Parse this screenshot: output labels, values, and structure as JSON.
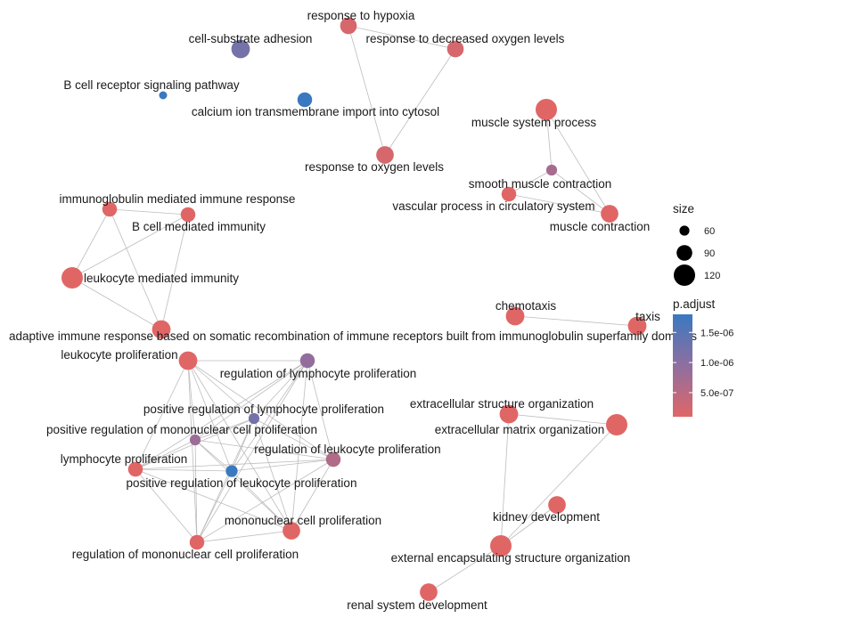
{
  "colors": {
    "low": "#e06666",
    "mid": "#8e6fa0",
    "high": "#3a78c0",
    "edge": "#bdbdbd"
  },
  "nodes": [
    {
      "id": "hypoxia",
      "label": "response to hypoxia",
      "size": 95,
      "p": 2e-07
    },
    {
      "id": "dec_oxygen",
      "label": "response to decreased oxygen levels",
      "size": 95,
      "p": 2e-07
    },
    {
      "id": "oxygen",
      "label": "response to oxygen levels",
      "size": 100,
      "p": 2e-07
    },
    {
      "id": "cell_substrate",
      "label": "cell-substrate adhesion",
      "size": 105,
      "p": 1.2e-06
    },
    {
      "id": "bcr",
      "label": "B cell receptor signaling pathway",
      "size": 50,
      "p": 1.8e-06
    },
    {
      "id": "calcium",
      "label": "calcium ion transmembrane import into cytosol",
      "size": 85,
      "p": 1.8e-06
    },
    {
      "id": "muscle_sys",
      "label": "muscle system process",
      "size": 120,
      "p": 1e-07
    },
    {
      "id": "smooth_muscle",
      "label": "smooth muscle contraction",
      "size": 65,
      "p": 7e-07
    },
    {
      "id": "vascular",
      "label": "vascular process in circulatory system",
      "size": 85,
      "p": 1e-07
    },
    {
      "id": "muscle_contr",
      "label": "muscle contraction",
      "size": 100,
      "p": 1e-07
    },
    {
      "id": "ig_immune",
      "label": "immunoglobulin mediated immune response",
      "size": 85,
      "p": 1e-07
    },
    {
      "id": "bcell_imm",
      "label": "B cell mediated immunity",
      "size": 85,
      "p": 1e-07
    },
    {
      "id": "leuko_imm",
      "label": "leukocyte mediated immunity",
      "size": 120,
      "p": 1e-07
    },
    {
      "id": "adaptive",
      "label": "adaptive immune response based on somatic recombination of immune receptors built from immunoglobulin superfamily domains",
      "size": 105,
      "p": 1e-07
    },
    {
      "id": "chemotaxis",
      "label": "chemotaxis",
      "size": 105,
      "p": 1e-07
    },
    {
      "id": "taxis",
      "label": "taxis",
      "size": 105,
      "p": 1e-07
    },
    {
      "id": "leuko_prolif",
      "label": "leukocyte proliferation",
      "size": 105,
      "p": 1e-07
    },
    {
      "id": "reg_lymph",
      "label": "regulation of lymphocyte proliferation",
      "size": 85,
      "p": 9e-07
    },
    {
      "id": "pos_reg_lymph",
      "label": "positive regulation of lymphocyte proliferation",
      "size": 65,
      "p": 1.2e-06
    },
    {
      "id": "pos_reg_mono",
      "label": "positive regulation of mononuclear cell proliferation",
      "size": 65,
      "p": 8e-07
    },
    {
      "id": "reg_leuko",
      "label": "regulation of leukocyte proliferation",
      "size": 85,
      "p": 6e-07
    },
    {
      "id": "lymph_prolif",
      "label": "lymphocyte proliferation",
      "size": 85,
      "p": 1e-07
    },
    {
      "id": "pos_reg_leuko",
      "label": "positive regulation of leukocyte proliferation",
      "size": 70,
      "p": 1.8e-06
    },
    {
      "id": "mono_prolif",
      "label": "mononuclear cell proliferation",
      "size": 100,
      "p": 1e-07
    },
    {
      "id": "reg_mono",
      "label": "regulation of mononuclear cell proliferation",
      "size": 85,
      "p": 1e-07
    },
    {
      "id": "ecm_struct",
      "label": "extracellular structure organization",
      "size": 105,
      "p": 1e-07
    },
    {
      "id": "ecm_matrix",
      "label": "extracellular matrix organization",
      "size": 120,
      "p": 1e-07
    },
    {
      "id": "kidney",
      "label": "kidney development",
      "size": 100,
      "p": 1e-07
    },
    {
      "id": "ext_encaps",
      "label": "external encapsulating structure organization",
      "size": 120,
      "p": 1e-07
    },
    {
      "id": "renal",
      "label": "renal system development",
      "size": 100,
      "p": 1e-07
    }
  ],
  "edges": [
    [
      "hypoxia",
      "dec_oxygen"
    ],
    [
      "hypoxia",
      "oxygen"
    ],
    [
      "dec_oxygen",
      "oxygen"
    ],
    [
      "muscle_sys",
      "smooth_muscle"
    ],
    [
      "muscle_sys",
      "muscle_contr"
    ],
    [
      "smooth_muscle",
      "vascular"
    ],
    [
      "smooth_muscle",
      "muscle_contr"
    ],
    [
      "vascular",
      "muscle_contr"
    ],
    [
      "ig_immune",
      "bcell_imm"
    ],
    [
      "ig_immune",
      "leuko_imm"
    ],
    [
      "ig_immune",
      "adaptive"
    ],
    [
      "bcell_imm",
      "leuko_imm"
    ],
    [
      "bcell_imm",
      "adaptive"
    ],
    [
      "leuko_imm",
      "adaptive"
    ],
    [
      "chemotaxis",
      "taxis"
    ],
    [
      "ecm_struct",
      "ecm_matrix"
    ],
    [
      "ecm_struct",
      "ext_encaps"
    ],
    [
      "ecm_matrix",
      "ext_encaps"
    ],
    [
      "ext_encaps",
      "kidney"
    ],
    [
      "ext_encaps",
      "renal"
    ],
    [
      "leuko_prolif",
      "reg_lymph"
    ],
    [
      "leuko_prolif",
      "pos_reg_lymph"
    ],
    [
      "leuko_prolif",
      "pos_reg_mono"
    ],
    [
      "leuko_prolif",
      "reg_leuko"
    ],
    [
      "leuko_prolif",
      "lymph_prolif"
    ],
    [
      "leuko_prolif",
      "pos_reg_leuko"
    ],
    [
      "leuko_prolif",
      "mono_prolif"
    ],
    [
      "leuko_prolif",
      "reg_mono"
    ],
    [
      "reg_lymph",
      "pos_reg_lymph"
    ],
    [
      "reg_lymph",
      "pos_reg_mono"
    ],
    [
      "reg_lymph",
      "reg_leuko"
    ],
    [
      "reg_lymph",
      "lymph_prolif"
    ],
    [
      "reg_lymph",
      "pos_reg_leuko"
    ],
    [
      "reg_lymph",
      "mono_prolif"
    ],
    [
      "reg_lymph",
      "reg_mono"
    ],
    [
      "pos_reg_lymph",
      "pos_reg_mono"
    ],
    [
      "pos_reg_lymph",
      "reg_leuko"
    ],
    [
      "pos_reg_lymph",
      "lymph_prolif"
    ],
    [
      "pos_reg_lymph",
      "pos_reg_leuko"
    ],
    [
      "pos_reg_lymph",
      "mono_prolif"
    ],
    [
      "pos_reg_lymph",
      "reg_mono"
    ],
    [
      "pos_reg_mono",
      "reg_leuko"
    ],
    [
      "pos_reg_mono",
      "lymph_prolif"
    ],
    [
      "pos_reg_mono",
      "pos_reg_leuko"
    ],
    [
      "pos_reg_mono",
      "mono_prolif"
    ],
    [
      "pos_reg_mono",
      "reg_mono"
    ],
    [
      "reg_leuko",
      "lymph_prolif"
    ],
    [
      "reg_leuko",
      "pos_reg_leuko"
    ],
    [
      "reg_leuko",
      "mono_prolif"
    ],
    [
      "reg_leuko",
      "reg_mono"
    ],
    [
      "lymph_prolif",
      "pos_reg_leuko"
    ],
    [
      "lymph_prolif",
      "mono_prolif"
    ],
    [
      "lymph_prolif",
      "reg_mono"
    ],
    [
      "pos_reg_leuko",
      "mono_prolif"
    ],
    [
      "pos_reg_leuko",
      "reg_mono"
    ],
    [
      "mono_prolif",
      "reg_mono"
    ]
  ],
  "legend": {
    "size_title": "size",
    "size_entries": [
      {
        "label": "60",
        "value": 60
      },
      {
        "label": "90",
        "value": 90
      },
      {
        "label": "120",
        "value": 120
      }
    ],
    "color_title": "p.adjust",
    "color_ticks": [
      {
        "label": "1.5e-06",
        "value": 1.5e-06
      },
      {
        "label": "1.0e-06",
        "value": 1e-06
      },
      {
        "label": "5.0e-07",
        "value": 5e-07
      }
    ],
    "color_range": [
      1e-07,
      1.8e-06
    ]
  }
}
